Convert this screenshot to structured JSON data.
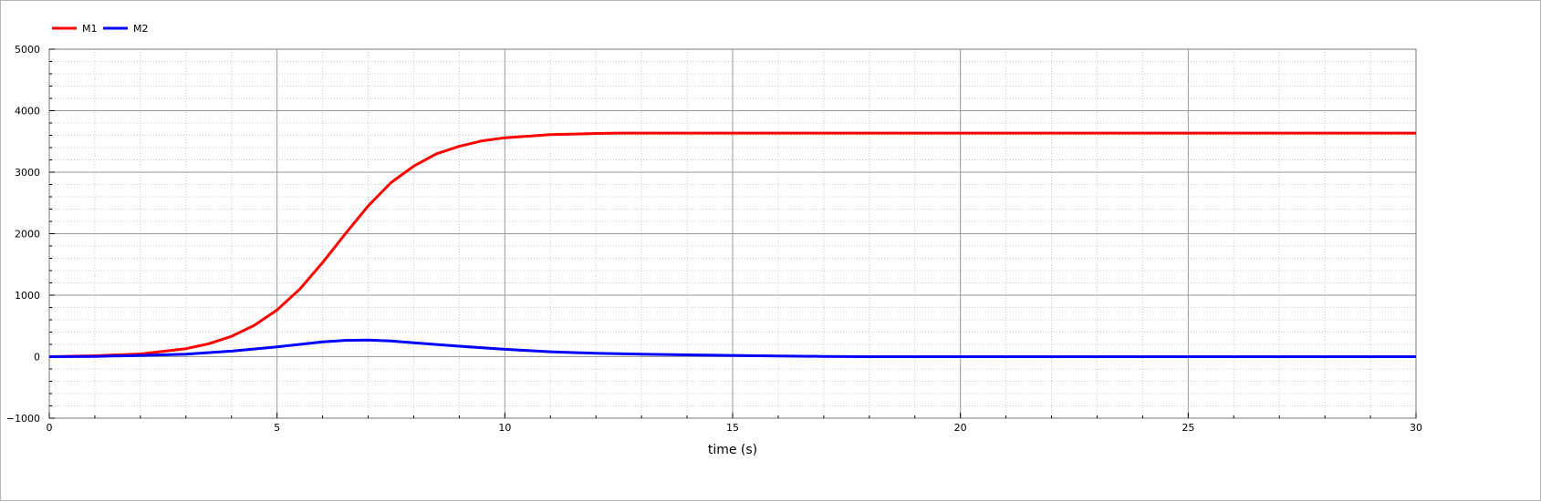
{
  "chart_data": {
    "type": "line",
    "title": "",
    "xlabel": "time (s)",
    "ylabel": "",
    "xlim": [
      0,
      30
    ],
    "ylim": [
      -1000,
      5000
    ],
    "x_ticks": [
      0,
      5,
      10,
      15,
      20,
      25,
      30
    ],
    "y_ticks": [
      -1000,
      0,
      1000,
      2000,
      3000,
      4000,
      5000
    ],
    "grid": true,
    "legend_position": "top-left",
    "series": [
      {
        "name": "M1",
        "color": "#ff0000",
        "points": [
          [
            0,
            0
          ],
          [
            1,
            15
          ],
          [
            2,
            45
          ],
          [
            3,
            130
          ],
          [
            3.5,
            210
          ],
          [
            4,
            330
          ],
          [
            4.5,
            510
          ],
          [
            5,
            760
          ],
          [
            5.5,
            1100
          ],
          [
            6,
            1530
          ],
          [
            6.5,
            2000
          ],
          [
            7,
            2450
          ],
          [
            7.5,
            2830
          ],
          [
            8,
            3100
          ],
          [
            8.5,
            3300
          ],
          [
            9,
            3420
          ],
          [
            9.5,
            3510
          ],
          [
            10,
            3560
          ],
          [
            11,
            3610
          ],
          [
            12,
            3630
          ],
          [
            12.5,
            3635
          ],
          [
            15,
            3635
          ],
          [
            20,
            3635
          ],
          [
            25,
            3635
          ],
          [
            30,
            3635
          ]
        ]
      },
      {
        "name": "M2",
        "color": "#0000ff",
        "points": [
          [
            0,
            0
          ],
          [
            1,
            5
          ],
          [
            2,
            20
          ],
          [
            3,
            40
          ],
          [
            4,
            90
          ],
          [
            5,
            160
          ],
          [
            6,
            240
          ],
          [
            6.5,
            265
          ],
          [
            7,
            270
          ],
          [
            7.5,
            255
          ],
          [
            8,
            225
          ],
          [
            9,
            170
          ],
          [
            10,
            120
          ],
          [
            11,
            80
          ],
          [
            12,
            55
          ],
          [
            13,
            40
          ],
          [
            14,
            30
          ],
          [
            15,
            20
          ],
          [
            16,
            12
          ],
          [
            17,
            5
          ],
          [
            18,
            0
          ],
          [
            20,
            0
          ],
          [
            25,
            0
          ],
          [
            30,
            0
          ]
        ]
      }
    ]
  }
}
